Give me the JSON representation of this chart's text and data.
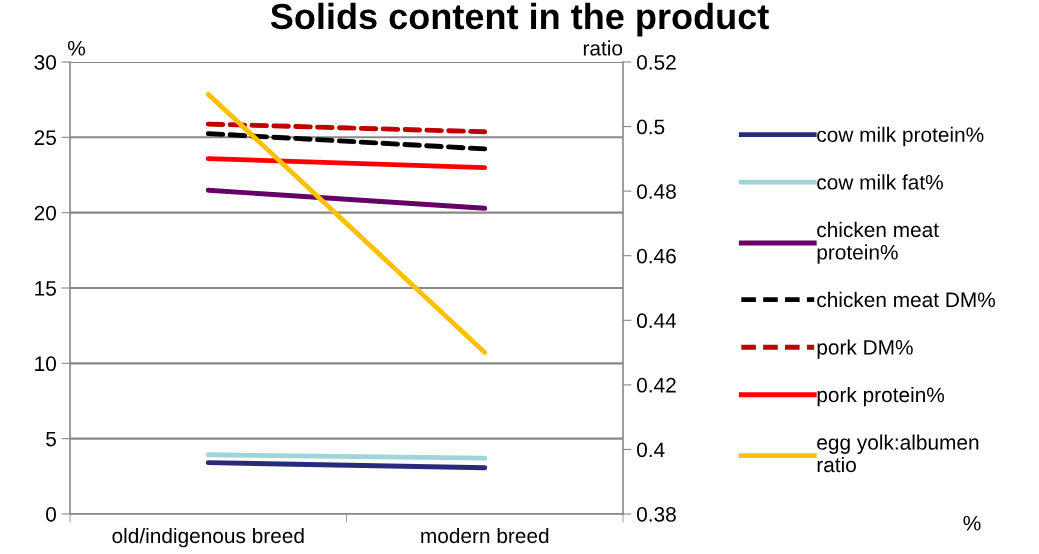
{
  "chart_data": {
    "type": "line",
    "title": "Solids content in the product",
    "ylabel": "%",
    "y2label": "ratio",
    "categories": [
      "old/indigenous breed",
      "modern breed"
    ],
    "series": [
      {
        "name": "cow milk protein%",
        "color": "#2a2a7a",
        "values": [
          3.41,
          3.07
        ]
      },
      {
        "name": "cow milk fat%",
        "color": "#9fd5d8",
        "values": [
          3.93,
          3.71
        ]
      },
      {
        "name": "chicken meat protein%",
        "color": "#660066",
        "values": [
          21.49,
          20.29
        ]
      },
      {
        "name": "chicken meat DM%",
        "color": "#000000",
        "values": [
          25.25,
          24.23
        ],
        "line_style": "dashed"
      },
      {
        "name": "pork DM%",
        "color": "#c00000",
        "values": [
          25.88,
          25.37
        ],
        "line_style": "dashed"
      },
      {
        "name": "pork protein%",
        "color": "#ff0000",
        "values": [
          23.59,
          22.99
        ]
      },
      {
        "name": "egg yolk:albumen ratio",
        "color": "#ffc000",
        "values": [
          0.51,
          0.43
        ],
        "axis": "y2"
      }
    ],
    "ylim": [
      0,
      30
    ],
    "yticks": [
      0,
      5,
      10,
      15,
      20,
      25,
      30
    ],
    "y2lim": [
      0.38,
      0.52
    ],
    "y2ticks": [
      0.38,
      0.4,
      0.42,
      0.44,
      0.46,
      0.48,
      0.5,
      0.52
    ],
    "grid": "y",
    "legend": "right",
    "marker": "none",
    "annotations": [
      "%"
    ]
  }
}
